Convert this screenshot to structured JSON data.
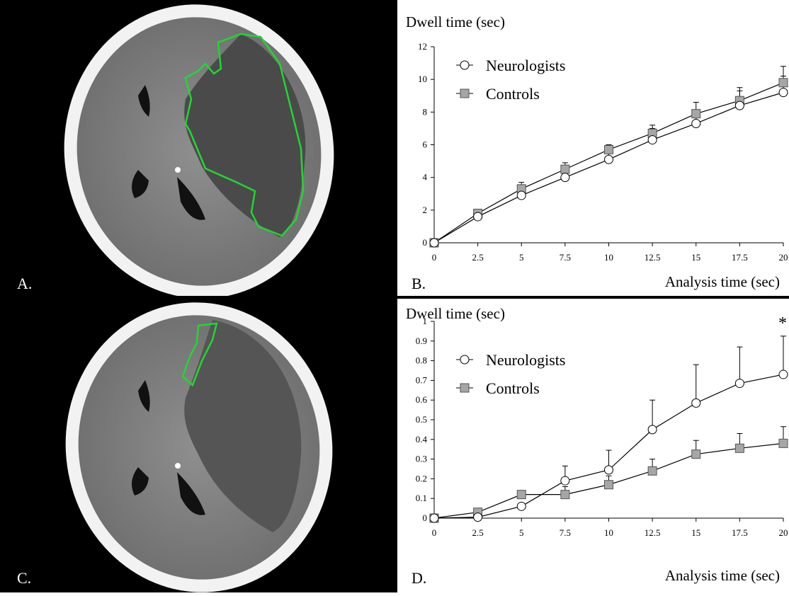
{
  "panels": {
    "a": {
      "letter": "A."
    },
    "b": {
      "letter": "B."
    },
    "c": {
      "letter": "C."
    },
    "d": {
      "letter": "D."
    }
  },
  "colors": {
    "roi_outline": "#22d632",
    "controls_marker": "#a6a6a6",
    "neurologists_marker": "#ffffff",
    "line": "#000000"
  },
  "chart_data": [
    {
      "type": "line",
      "ylabel": "Dwell time (sec)",
      "xlabel": "Analysis time (sec)",
      "x": [
        0,
        2.5,
        5,
        7.5,
        10,
        12.5,
        15,
        17.5,
        20
      ],
      "x_tick_labels": [
        "0",
        "2.5",
        "5",
        "7.5",
        "10",
        "12.5",
        "15",
        "17.5",
        "20"
      ],
      "y_ticks": [
        0,
        2,
        4,
        6,
        8,
        10,
        12
      ],
      "y_tick_labels": [
        "0",
        "2",
        "4",
        "6",
        "8",
        "10",
        "12"
      ],
      "ylim": [
        0,
        12
      ],
      "xlim": [
        0,
        20
      ],
      "legend_position": "top-left",
      "grid": false,
      "annotation": "",
      "series": [
        {
          "name": "Neurologists",
          "marker": "circle",
          "values": [
            0,
            1.6,
            2.9,
            4.0,
            5.1,
            6.3,
            7.3,
            8.4,
            9.2
          ],
          "error": [
            0,
            0.2,
            0.3,
            0.5,
            0.6,
            0.7,
            0.8,
            0.9,
            1.0
          ]
        },
        {
          "name": "Controls",
          "marker": "square",
          "values": [
            0,
            1.8,
            3.3,
            4.5,
            5.7,
            6.7,
            7.9,
            8.7,
            9.8
          ],
          "error": [
            0,
            0.2,
            0.4,
            0.4,
            0.3,
            0.5,
            0.7,
            0.8,
            1.0
          ]
        }
      ]
    },
    {
      "type": "line",
      "ylabel": "Dwell time (sec)",
      "xlabel": "Analysis time (sec)",
      "x": [
        0,
        2.5,
        5,
        7.5,
        10,
        12.5,
        15,
        17.5,
        20
      ],
      "x_tick_labels": [
        "0",
        "2.5",
        "5",
        "7.5",
        "10",
        "12.5",
        "15",
        "17.5",
        "20"
      ],
      "y_ticks": [
        0,
        0.1,
        0.2,
        0.3,
        0.4,
        0.5,
        0.6,
        0.7,
        0.8,
        0.9,
        1
      ],
      "y_tick_labels": [
        "0",
        "0.1",
        "0.2",
        "0.3",
        "0.4",
        "0.5",
        "0.6",
        "0.7",
        "0.8",
        "0.9",
        "1"
      ],
      "ylim": [
        0,
        1
      ],
      "xlim": [
        0,
        20
      ],
      "legend_position": "top-left",
      "grid": false,
      "annotation": "*",
      "series": [
        {
          "name": "Neurologists",
          "marker": "circle",
          "values": [
            0,
            0.005,
            0.06,
            0.19,
            0.245,
            0.45,
            0.585,
            0.685,
            0.73
          ],
          "error": [
            0,
            0,
            0,
            0.075,
            0.1,
            0.15,
            0.195,
            0.185,
            0.195
          ]
        },
        {
          "name": "Controls",
          "marker": "square",
          "values": [
            0,
            0.03,
            0.12,
            0.12,
            0.17,
            0.24,
            0.325,
            0.355,
            0.38
          ],
          "error": [
            0,
            0,
            0,
            0.04,
            0.045,
            0.06,
            0.07,
            0.075,
            0.085
          ]
        }
      ]
    }
  ]
}
